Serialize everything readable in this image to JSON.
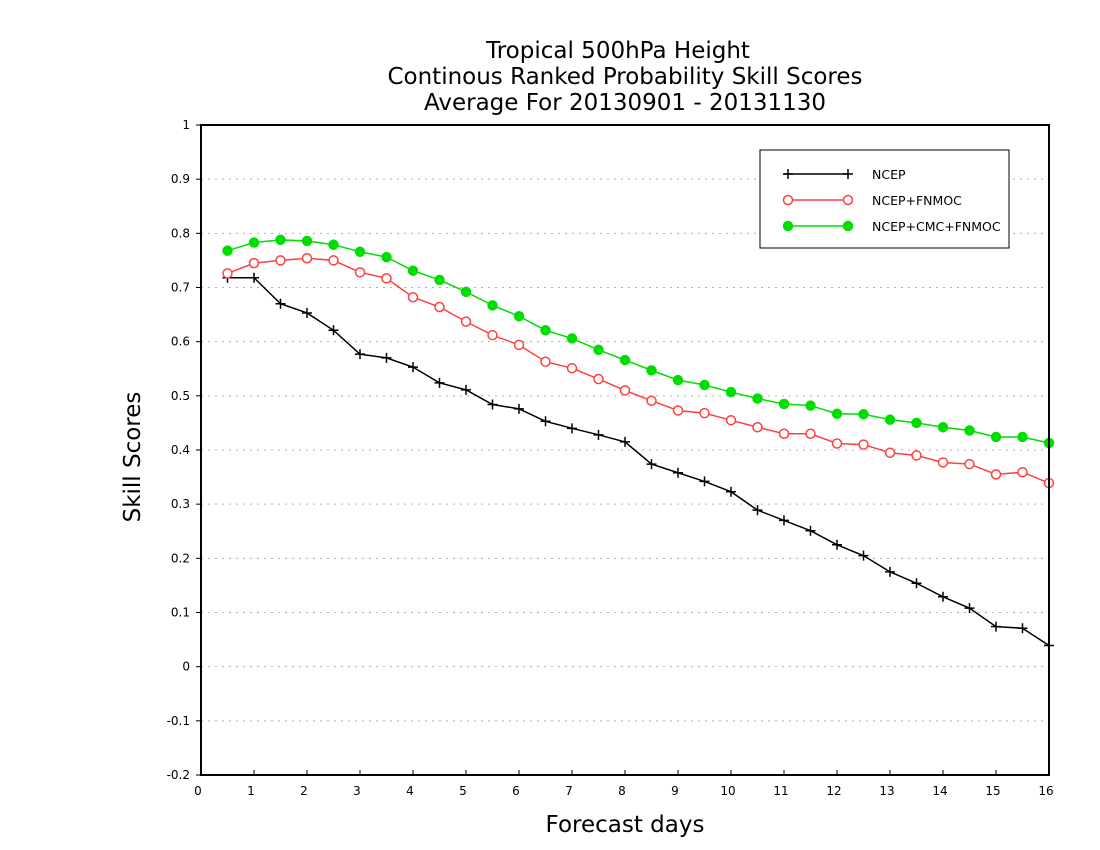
{
  "chart_data": {
    "type": "line",
    "title": [
      "Tropical 500hPa Height",
      "Continous Ranked Probability Skill Scores",
      "Average For 20130901 - 20131130"
    ],
    "xlabel": "Forecast days",
    "ylabel": "Skill Scores",
    "xlim": [
      0,
      16
    ],
    "ylim": [
      -0.2,
      1
    ],
    "xticks": [
      "0",
      "1",
      "2",
      "3",
      "4",
      "5",
      "6",
      "7",
      "8",
      "9",
      "10",
      "11",
      "12",
      "13",
      "14",
      "15",
      "16"
    ],
    "yticks": [
      "-0.2",
      "-0.1",
      "0",
      "0.1",
      "0.2",
      "0.3",
      "0.4",
      "0.5",
      "0.6",
      "0.7",
      "0.8",
      "0.9",
      "1"
    ],
    "grid": "horizontal dotted",
    "legend_position": "top-right",
    "x": [
      0.5,
      1,
      1.5,
      2,
      2.5,
      3,
      3.5,
      4,
      4.5,
      5,
      5.5,
      6,
      6.5,
      7,
      7.5,
      8,
      8.5,
      9,
      9.5,
      10,
      10.5,
      11,
      11.5,
      12,
      12.5,
      13,
      13.5,
      14,
      14.5,
      15,
      15.5,
      16
    ],
    "series": [
      {
        "name": "NCEP",
        "color": "#000000",
        "marker": "plus",
        "values": [
          0.718,
          0.718,
          0.67,
          0.653,
          0.621,
          0.577,
          0.57,
          0.553,
          0.524,
          0.511,
          0.484,
          0.476,
          0.453,
          0.44,
          0.428,
          0.415,
          0.374,
          0.358,
          0.342,
          0.323,
          0.289,
          0.27,
          0.251,
          0.225,
          0.205,
          0.175,
          0.154,
          0.129,
          0.108,
          0.074,
          0.071,
          0.039
        ]
      },
      {
        "name": "NCEP+FNMOC",
        "color": "#ff4040",
        "marker": "open-circle",
        "values": [
          0.726,
          0.745,
          0.75,
          0.754,
          0.75,
          0.728,
          0.717,
          0.682,
          0.664,
          0.637,
          0.612,
          0.594,
          0.563,
          0.551,
          0.531,
          0.51,
          0.491,
          0.473,
          0.468,
          0.455,
          0.442,
          0.43,
          0.43,
          0.412,
          0.41,
          0.395,
          0.39,
          0.377,
          0.374,
          0.355,
          0.359,
          0.339
        ]
      },
      {
        "name": "NCEP+CMC+FNMOC",
        "color": "#00dd00",
        "marker": "filled-circle",
        "values": [
          0.768,
          0.783,
          0.788,
          0.786,
          0.779,
          0.766,
          0.756,
          0.731,
          0.714,
          0.692,
          0.667,
          0.647,
          0.621,
          0.606,
          0.585,
          0.566,
          0.547,
          0.529,
          0.52,
          0.507,
          0.495,
          0.485,
          0.482,
          0.467,
          0.466,
          0.456,
          0.45,
          0.442,
          0.436,
          0.424,
          0.424,
          0.413
        ]
      }
    ]
  }
}
